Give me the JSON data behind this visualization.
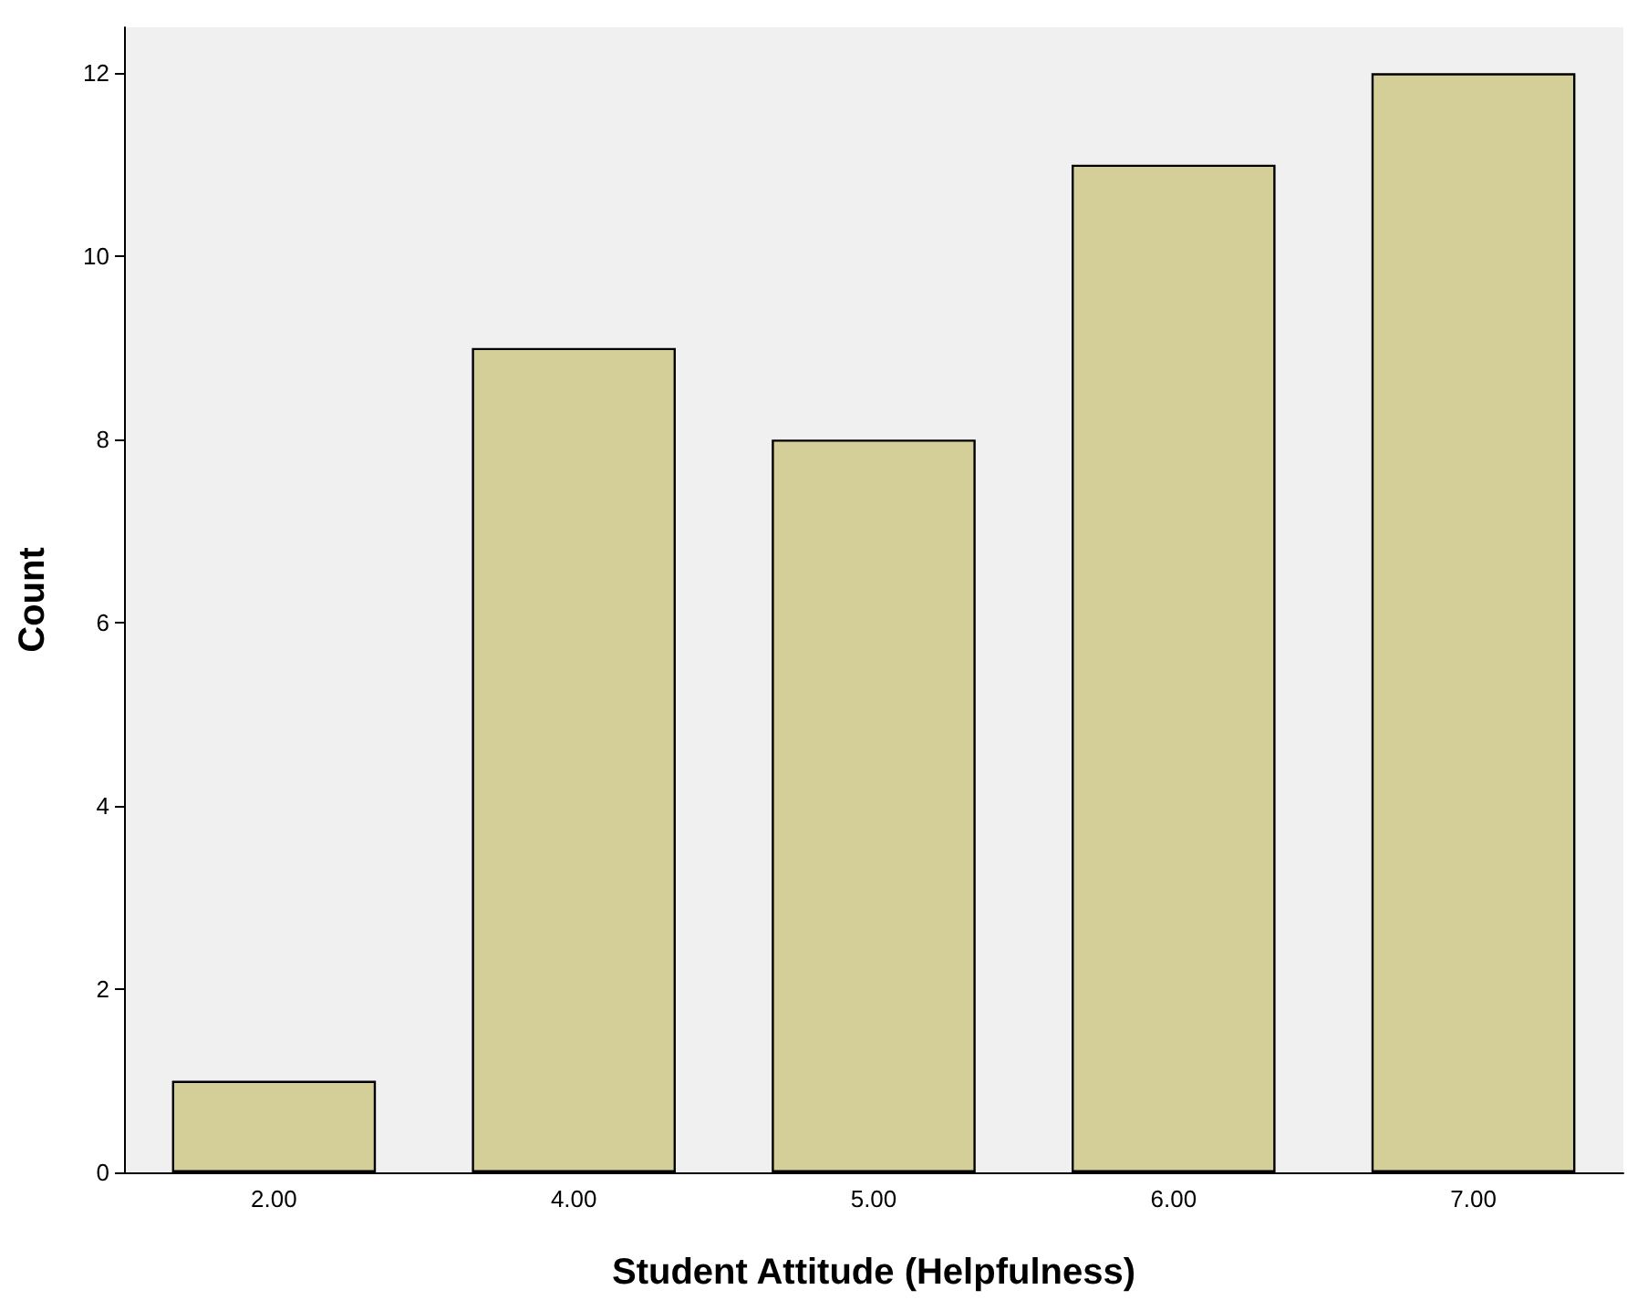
{
  "chart_data": {
    "type": "bar",
    "xlabel": "Student Attitude (Helpfulness)",
    "ylabel": "Count",
    "categories": [
      "2.00",
      "4.00",
      "5.00",
      "6.00",
      "7.00"
    ],
    "values": [
      1,
      9,
      8,
      11,
      12
    ],
    "color": "#d4cf98",
    "ylim": [
      0,
      12.5
    ],
    "yticks": [
      0,
      2,
      4,
      6,
      8,
      10,
      12
    ],
    "grid": false
  }
}
